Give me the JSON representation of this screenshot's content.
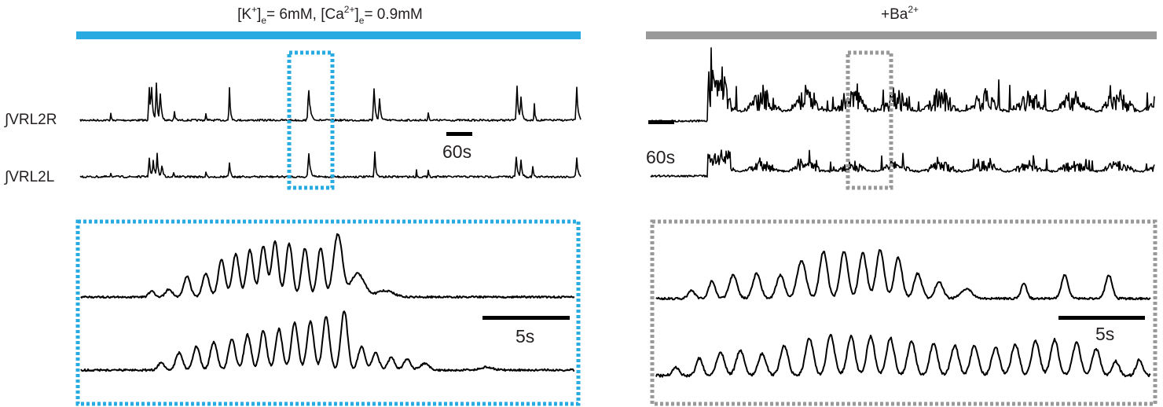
{
  "conditions": {
    "control": {
      "pre": "[K",
      "k_sup": "+",
      "bracket1": "]",
      "k_sub": "e",
      "mid": "= 6mM, [Ca",
      "ca_sup": "2+",
      "bracket2": "]",
      "ca_sub": "e",
      "post": "= 0.9mM",
      "bar_color": "#29abe2"
    },
    "barium": {
      "pre": "+Ba",
      "sup": "2+",
      "bar_color": "#999999"
    }
  },
  "trace_labels": {
    "right": "∫VRL2R",
    "left": "∫VRL2L"
  },
  "scale_bars": {
    "control_overview": "60s",
    "barium_overview": "60s",
    "control_zoom": "5s",
    "barium_zoom": "5s"
  },
  "colors": {
    "trace": "#000000",
    "control_box": "#29abe2",
    "barium_box": "#999999"
  }
}
